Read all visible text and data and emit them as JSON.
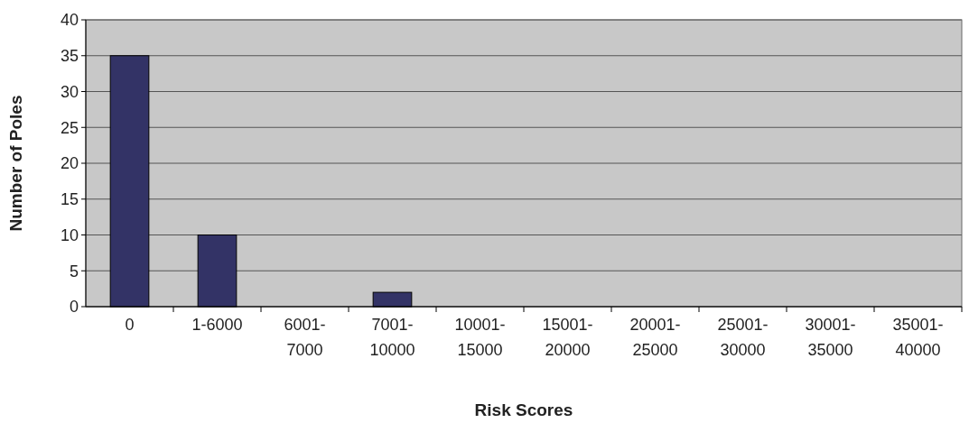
{
  "chart_data": {
    "type": "bar",
    "xlabel": "Risk Scores",
    "ylabel": "Number of Poles",
    "categories": [
      "0",
      "1-6000",
      "6001-\n7000",
      "7001-\n10000",
      "10001-\n15000",
      "15001-\n20000",
      "20001-\n25000",
      "25001-\n30000",
      "30001-\n35000",
      "35001-\n40000"
    ],
    "values": [
      35,
      10,
      0,
      2,
      0,
      0,
      0,
      0,
      0,
      0
    ],
    "color": "#333366",
    "ylim": [
      0,
      40
    ],
    "yticks": [
      0,
      5,
      10,
      15,
      20,
      25,
      30,
      35,
      40
    ],
    "grid": "y"
  }
}
